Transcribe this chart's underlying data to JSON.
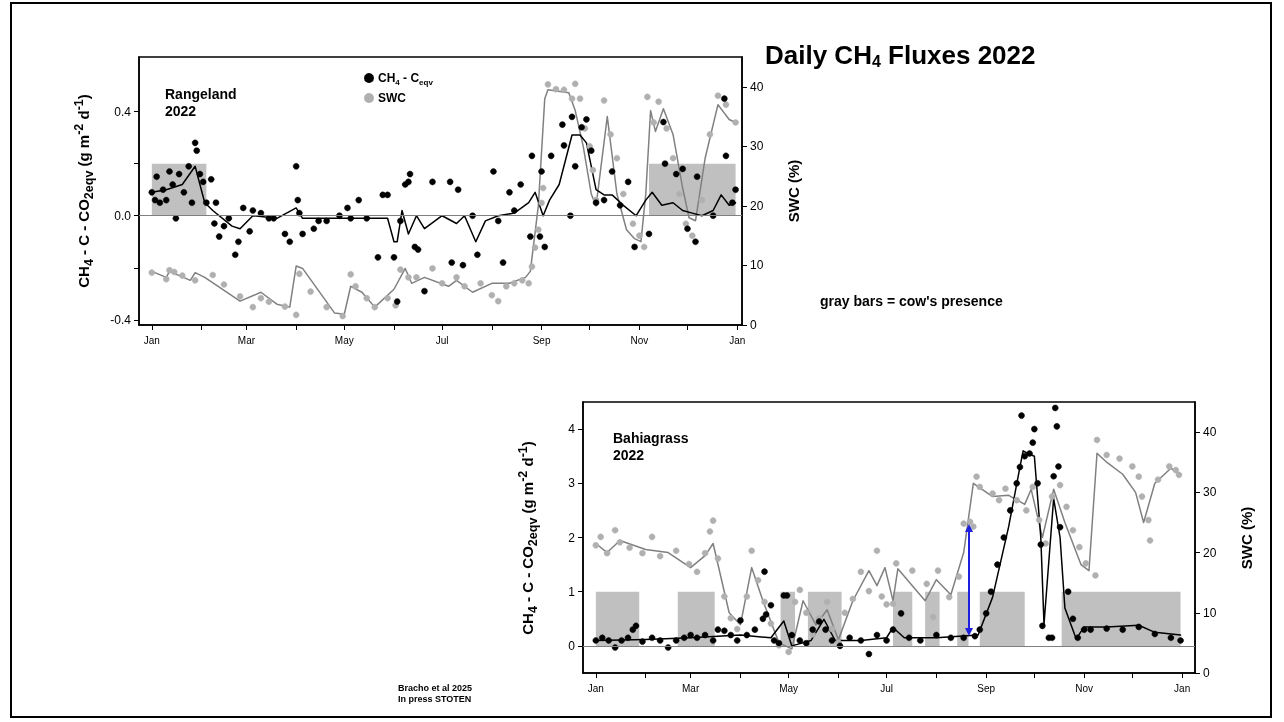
{
  "chart_data": [
    {
      "type": "scatter",
      "title": "Daily CH$_{4}$ Fluxes 2022",
      "ylabel": "CH$_{4}$ - C - CO$_{2eqv}$ (g m$^{-2}$ d$^{-1}$)",
      "y2label": "SWC (%)",
      "annotations": [
        "Rangeland\n2022",
        "gray bars = cow's presence"
      ],
      "xlim": [
        "2021-12-24",
        "2023-01-04"
      ],
      "xticks": [
        {
          "value": "2022-01-01",
          "label": "Jan"
        },
        {
          "value": "2022-02-01",
          "label": null
        },
        {
          "value": "2022-03-01",
          "label": "Mar"
        },
        {
          "value": "2022-04-01",
          "label": null
        },
        {
          "value": "2022-05-01",
          "label": "May"
        },
        {
          "value": "2022-06-01",
          "label": null
        },
        {
          "value": "2022-07-01",
          "label": "Jul"
        },
        {
          "value": "2022-08-01",
          "label": null
        },
        {
          "value": "2022-09-01",
          "label": "Sep"
        },
        {
          "value": "2022-10-01",
          "label": null
        },
        {
          "value": "2022-11-01",
          "label": "Nov"
        },
        {
          "value": "2022-12-01",
          "label": null
        },
        {
          "value": "2023-01-01",
          "label": "Jan"
        }
      ],
      "ylim": [
        -0.42,
        0.61
      ],
      "yticks": [
        -0.4,
        {
          "value": -0.2,
          "label": null
        },
        {
          "value": 0,
          "label": "0.0"
        },
        {
          "value": 0.2,
          "label": null
        },
        0.4
      ],
      "y2lim": [
        0,
        45
      ],
      "y2ticks": [
        0,
        10,
        20,
        30,
        40
      ],
      "legend": "top",
      "marker": "circle",
      "ref_lines": [
        {
          "axis": "y",
          "value": 0,
          "color": "#808080"
        }
      ],
      "series": [
        {
          "type": "area",
          "color": "#c0c0c0",
          "marker": "none",
          "x": [
            "2022-01-01",
            "2022-02-04",
            "2022-02-04",
            "2022-11-07",
            "2022-11-07",
            "2022-12-31"
          ],
          "values": [
            0.2,
            0.2,
            0,
            0,
            0.2,
            0.2
          ]
        },
        {
          "type": "line",
          "color": "#808080",
          "axis": "y2",
          "marker": "none",
          "x": [
            "2022-01-01",
            "2022-01-10",
            "2022-01-12",
            "2022-01-25",
            "2022-01-28",
            "2022-02-03",
            "2022-02-25",
            "2022-03-10",
            "2022-03-20",
            "2022-03-28",
            "2022-04-01",
            "2022-04-05",
            "2022-04-25",
            "2022-05-01",
            "2022-05-05",
            "2022-05-12",
            "2022-05-20",
            "2022-06-01",
            "2022-06-08",
            "2022-06-12",
            "2022-06-20",
            "2022-07-05",
            "2022-07-10",
            "2022-07-20",
            "2022-08-01",
            "2022-08-12",
            "2022-08-22",
            "2022-08-25",
            "2022-08-30",
            "2022-09-03",
            "2022-09-05",
            "2022-09-18",
            "2022-09-22",
            "2022-09-27",
            "2022-10-02",
            "2022-10-05",
            "2022-10-12",
            "2022-10-18",
            "2022-10-24",
            "2022-10-29",
            "2022-11-02",
            "2022-11-05",
            "2022-11-08",
            "2022-11-11",
            "2022-11-16",
            "2022-11-22",
            "2022-11-28",
            "2022-12-02",
            "2022-12-06",
            "2022-12-12",
            "2022-12-20",
            "2022-12-27",
            "2022-12-31"
          ],
          "values": [
            9,
            8,
            9,
            7.5,
            8.8,
            8,
            4,
            5.5,
            3.5,
            3,
            9.9,
            9.5,
            2,
            1.8,
            6.5,
            5.5,
            3,
            6,
            9.5,
            7,
            8,
            6.5,
            7.5,
            5.5,
            7,
            7,
            8,
            9,
            20,
            38,
            39.5,
            39,
            36,
            30,
            22,
            20,
            35,
            22,
            16,
            14.5,
            14,
            22,
            36,
            32.5,
            36.3,
            32,
            23,
            18,
            17.5,
            28,
            37,
            34.5,
            34
          ]
        },
        {
          "name": "SWC",
          "color": "#b0b0b0",
          "axis": "y2",
          "x": [
            "2022-01-01",
            "2022-01-10",
            "2022-01-12",
            "2022-01-15",
            "2022-01-20",
            "2022-01-28",
            "2022-02-08",
            "2022-02-15",
            "2022-02-25",
            "2022-03-05",
            "2022-03-10",
            "2022-03-15",
            "2022-03-25",
            "2022-04-01",
            "2022-04-03",
            "2022-04-10",
            "2022-04-20",
            "2022-04-30",
            "2022-05-05",
            "2022-05-08",
            "2022-05-15",
            "2022-05-20",
            "2022-05-28",
            "2022-06-02",
            "2022-06-05",
            "2022-06-10",
            "2022-06-15",
            "2022-06-25",
            "2022-07-01",
            "2022-07-10",
            "2022-07-15",
            "2022-07-25",
            "2022-08-01",
            "2022-08-05",
            "2022-08-10",
            "2022-08-15",
            "2022-08-20",
            "2022-08-24",
            "2022-08-26",
            "2022-08-28",
            "2022-08-30",
            "2022-09-01",
            "2022-09-02",
            "2022-09-05",
            "2022-09-10",
            "2022-09-15",
            "2022-09-20",
            "2022-09-22",
            "2022-09-25",
            "2022-09-28",
            "2022-10-01",
            "2022-10-03",
            "2022-10-05",
            "2022-10-10",
            "2022-10-14",
            "2022-10-18",
            "2022-10-22",
            "2022-10-28",
            "2022-11-01",
            "2022-11-04",
            "2022-11-06",
            "2022-11-10",
            "2022-11-13",
            "2022-11-18",
            "2022-11-22",
            "2022-11-26",
            "2022-11-30",
            "2022-12-04",
            "2022-12-10",
            "2022-12-15",
            "2022-12-20",
            "2022-12-25",
            "2022-12-31"
          ],
          "values": [
            8.8,
            7.7,
            9.2,
            8.9,
            8.3,
            7.5,
            8.4,
            6.8,
            4.8,
            3,
            4.5,
            3.9,
            3.1,
            1.7,
            8.6,
            5.6,
            3,
            1.5,
            8.5,
            6.5,
            4.5,
            3,
            4.5,
            3.3,
            9.3,
            8,
            8,
            9.5,
            7,
            8,
            6.5,
            7,
            5,
            4,
            6.5,
            7,
            7.5,
            7,
            9.8,
            13,
            16,
            20.5,
            23,
            40.4,
            39.6,
            39.5,
            38,
            40.5,
            38,
            33,
            30,
            26,
            21,
            37.7,
            32,
            28,
            22,
            17,
            15,
            13.1,
            38.3,
            34,
            37.5,
            33,
            28,
            22,
            17,
            15,
            21,
            32,
            38.5,
            37,
            34
          ]
        },
        {
          "type": "line",
          "color": "#000000",
          "marker": "none",
          "x": [
            "2022-01-01",
            "2022-01-10",
            "2022-01-20",
            "2022-01-28",
            "2022-02-03",
            "2022-02-08",
            "2022-02-20",
            "2022-02-25",
            "2022-03-05",
            "2022-03-20",
            "2022-04-01",
            "2022-04-05",
            "2022-04-20",
            "2022-05-15",
            "2022-05-28",
            "2022-06-01",
            "2022-06-03",
            "2022-06-06",
            "2022-06-10",
            "2022-06-15",
            "2022-06-20",
            "2022-07-01",
            "2022-07-10",
            "2022-07-15",
            "2022-07-22",
            "2022-07-28",
            "2022-08-05",
            "2022-08-15",
            "2022-08-24",
            "2022-08-28",
            "2022-09-02",
            "2022-09-06",
            "2022-09-12",
            "2022-09-20",
            "2022-09-25",
            "2022-09-29",
            "2022-10-05",
            "2022-10-10",
            "2022-10-15",
            "2022-10-22",
            "2022-10-30",
            "2022-11-05",
            "2022-11-09",
            "2022-11-15",
            "2022-11-22",
            "2022-11-28",
            "2022-12-04",
            "2022-12-10",
            "2022-12-17",
            "2022-12-22",
            "2022-12-27",
            "2022-12-31"
          ],
          "values": [
            0.09,
            0.1,
            0.12,
            0.19,
            0.05,
            0.02,
            -0.04,
            -0.05,
            0,
            -0.01,
            0.03,
            -0.01,
            -0.01,
            -0.01,
            -0.01,
            -0.1,
            -0.1,
            0.02,
            -0.07,
            0,
            -0.05,
            0,
            -0.03,
            0,
            -0.1,
            -0.02,
            0,
            0.01,
            0.05,
            0.09,
            0,
            0.06,
            0.12,
            0.31,
            0.31,
            0.28,
            0.1,
            0.08,
            0.08,
            0.04,
            0,
            0.06,
            0.09,
            0.04,
            0.05,
            0.02,
            0.01,
            0,
            0.02,
            0.08,
            0.04,
            0.05
          ]
        },
        {
          "name": "CH$_{4}$ - C$_{eqv}$",
          "color": "#000000",
          "x": [
            "2022-01-01",
            "2022-01-03",
            "2022-01-04",
            "2022-01-06",
            "2022-01-08",
            "2022-01-10",
            "2022-01-12",
            "2022-01-14",
            "2022-01-16",
            "2022-01-18",
            "2022-01-21",
            "2022-01-24",
            "2022-01-26",
            "2022-01-28",
            "2022-01-29",
            "2022-01-31",
            "2022-02-02",
            "2022-02-04",
            "2022-02-07",
            "2022-02-09",
            "2022-02-10",
            "2022-02-12",
            "2022-02-15",
            "2022-02-18",
            "2022-02-22",
            "2022-02-24",
            "2022-02-27",
            "2022-03-03",
            "2022-03-05",
            "2022-03-10",
            "2022-03-15",
            "2022-03-18",
            "2022-03-25",
            "2022-03-28",
            "2022-04-01",
            "2022-04-02",
            "2022-04-03",
            "2022-04-05",
            "2022-04-12",
            "2022-04-15",
            "2022-04-20",
            "2022-04-28",
            "2022-05-03",
            "2022-05-05",
            "2022-05-10",
            "2022-05-15",
            "2022-05-22",
            "2022-05-25",
            "2022-05-28",
            "2022-06-01",
            "2022-06-03",
            "2022-06-05",
            "2022-06-08",
            "2022-06-10",
            "2022-06-11",
            "2022-06-14",
            "2022-06-16",
            "2022-06-20",
            "2022-06-25",
            "2022-07-06",
            "2022-07-07",
            "2022-07-11",
            "2022-07-14",
            "2022-07-20",
            "2022-07-23",
            "2022-08-02",
            "2022-08-05",
            "2022-08-08",
            "2022-08-12",
            "2022-08-15",
            "2022-08-19",
            "2022-08-25",
            "2022-08-26",
            "2022-08-31",
            "2022-09-01",
            "2022-09-03",
            "2022-09-07",
            "2022-09-14",
            "2022-09-15",
            "2022-09-19",
            "2022-09-20",
            "2022-09-22",
            "2022-09-26",
            "2022-09-29",
            "2022-10-02",
            "2022-10-05",
            "2022-10-10",
            "2022-10-15",
            "2022-10-20",
            "2022-10-25",
            "2022-10-29",
            "2022-11-07",
            "2022-11-16",
            "2022-11-17",
            "2022-11-24",
            "2022-11-28",
            "2022-12-01",
            "2022-12-06",
            "2022-12-07",
            "2022-12-17",
            "2022-12-24",
            "2022-12-25",
            "2022-12-29",
            "2022-12-31"
          ],
          "values": [
            0.09,
            0.06,
            0.15,
            0.05,
            0.1,
            0.06,
            0.17,
            0.12,
            -0.01,
            0.16,
            0.09,
            0.19,
            0.05,
            0.28,
            0.25,
            0.16,
            0.13,
            0.05,
            0.14,
            -0.03,
            0.05,
            -0.08,
            -0.04,
            -0.01,
            -0.15,
            -0.1,
            0.03,
            -0.06,
            0.02,
            0.01,
            -0.01,
            -0.01,
            -0.07,
            -0.1,
            0.19,
            0.06,
            0.01,
            -0.07,
            -0.05,
            -0.02,
            -0.02,
            0,
            0.03,
            -0.01,
            0.06,
            -0.01,
            -0.16,
            0.08,
            0.08,
            -0.16,
            -0.33,
            -0.02,
            0.12,
            0.13,
            0.16,
            -0.12,
            -0.13,
            -0.29,
            0.13,
            0.13,
            -0.18,
            0.1,
            -0.19,
            0,
            -0.15,
            0.17,
            -0.02,
            -0.18,
            0.09,
            0.02,
            0.12,
            -0.08,
            0.23,
            -0.08,
            0.17,
            -0.12,
            0.23,
            0.35,
            0.27,
            0,
            0.38,
            0.19,
            0.34,
            0.37,
            0.25,
            0.05,
            0.06,
            0.17,
            0.04,
            0.13,
            -0.12,
            -0.07,
            0.36,
            0.2,
            0.16,
            0.18,
            -0.05,
            -0.1,
            0.15,
            0,
            0.45,
            0.23,
            0.05,
            0.1
          ]
        }
      ]
    },
    {
      "type": "scatter",
      "ylabel": "CH$_{4}$ - C - CO$_{2eqv}$ (g m$^{-2}$ d$^{-1}$)",
      "y2label": "SWC (%)",
      "annotations": [
        "Bahiagrass\n2022",
        "Bracho et al 2025\nIn press STOTEN"
      ],
      "xlim": [
        "2021-12-24",
        "2023-01-09"
      ],
      "xticks": [
        {
          "value": "2022-01-01",
          "label": "Jan"
        },
        {
          "value": "2022-02-01",
          "label": null
        },
        {
          "value": "2022-03-01",
          "label": "Mar"
        },
        {
          "value": "2022-04-01",
          "label": null
        },
        {
          "value": "2022-05-01",
          "label": "May"
        },
        {
          "value": "2022-06-01",
          "label": null
        },
        {
          "value": "2022-07-01",
          "label": "Jul"
        },
        {
          "value": "2022-08-01",
          "label": null
        },
        {
          "value": "2022-09-01",
          "label": "Sep"
        },
        {
          "value": "2022-10-01",
          "label": null
        },
        {
          "value": "2022-11-01",
          "label": "Nov"
        },
        {
          "value": "2022-12-01",
          "label": null
        },
        {
          "value": "2023-01-01",
          "label": "Jan"
        }
      ],
      "ylim": [
        -0.5,
        4.5
      ],
      "yticks": [
        0,
        1,
        2,
        3,
        4
      ],
      "y2lim": [
        0,
        45
      ],
      "y2ticks": [
        0,
        10,
        20,
        30,
        40
      ],
      "marker": "circle",
      "ref_lines": [
        {
          "axis": "y",
          "value": 0,
          "color": "#808080"
        }
      ],
      "series": [
        {
          "type": "area",
          "color": "#c0c0c0",
          "marker": "none",
          "x": [
            "2022-01-01",
            "2022-01-28",
            "2022-01-28",
            "2022-02-21",
            "2022-02-21",
            "2022-03-16",
            "2022-03-16",
            "2022-04-26",
            "2022-04-26",
            "2022-05-05",
            "2022-05-05",
            "2022-05-13",
            "2022-05-13",
            "2022-06-03",
            "2022-06-03",
            "2022-07-05",
            "2022-07-05",
            "2022-07-17",
            "2022-07-17",
            "2022-07-25",
            "2022-07-25",
            "2022-08-03",
            "2022-08-03",
            "2022-08-14",
            "2022-08-14",
            "2022-08-21",
            "2022-08-21",
            "2022-08-28",
            "2022-08-28",
            "2022-09-25",
            "2022-09-25",
            "2022-10-18",
            "2022-10-18",
            "2022-12-31"
          ],
          "values": [
            1,
            1,
            0,
            0,
            1,
            1,
            0,
            0,
            1,
            1,
            0,
            0,
            1,
            1,
            0,
            0,
            1,
            1,
            0,
            0,
            1,
            1,
            0,
            0,
            1,
            1,
            0,
            0,
            1,
            1,
            0,
            0,
            1,
            1
          ]
        },
        {
          "type": "line",
          "color": "#808080",
          "axis": "y2",
          "marker": "none",
          "x": [
            "2022-01-01",
            "2022-01-08",
            "2022-01-16",
            "2022-02-01",
            "2022-02-15",
            "2022-03-01",
            "2022-03-10",
            "2022-03-15",
            "2022-03-25",
            "2022-04-01",
            "2022-04-08",
            "2022-04-15",
            "2022-04-25",
            "2022-05-03",
            "2022-05-10",
            "2022-05-18",
            "2022-05-25",
            "2022-06-01",
            "2022-06-10",
            "2022-06-20",
            "2022-06-25",
            "2022-06-30",
            "2022-07-05",
            "2022-07-08",
            "2022-07-25",
            "2022-08-01",
            "2022-08-10",
            "2022-08-18",
            "2022-08-24",
            "2022-09-05",
            "2022-09-15",
            "2022-09-25",
            "2022-09-29",
            "2022-10-06",
            "2022-10-13",
            "2022-10-20",
            "2022-10-30",
            "2022-11-04",
            "2022-11-09",
            "2022-11-15",
            "2022-11-25",
            "2022-12-03",
            "2022-12-08",
            "2022-12-15",
            "2022-12-25",
            "2022-12-31"
          ],
          "values": [
            21.5,
            20,
            22,
            20.5,
            20,
            17.5,
            19.5,
            21.5,
            10,
            8,
            17.5,
            12,
            5,
            4,
            12,
            8,
            10.5,
            5.5,
            12,
            17,
            14.5,
            17.5,
            12,
            17.3,
            12,
            15.5,
            13,
            20,
            31.5,
            29.3,
            29.5,
            28,
            30.5,
            22.5,
            30.5,
            25,
            18,
            17,
            36.5,
            35,
            33,
            30,
            25,
            31.5,
            34,
            33
          ]
        },
        {
          "color": "#b0b0b0",
          "axis": "y2",
          "x": [
            "2022-01-01",
            "2022-01-04",
            "2022-01-08",
            "2022-01-13",
            "2022-01-16",
            "2022-01-22",
            "2022-01-30",
            "2022-02-05",
            "2022-02-10",
            "2022-02-20",
            "2022-02-28",
            "2022-03-05",
            "2022-03-10",
            "2022-03-13",
            "2022-03-15",
            "2022-03-18",
            "2022-03-22",
            "2022-03-26",
            "2022-03-30",
            "2022-04-05",
            "2022-04-08",
            "2022-04-12",
            "2022-04-16",
            "2022-04-20",
            "2022-04-25",
            "2022-05-01",
            "2022-05-05",
            "2022-05-08",
            "2022-05-12",
            "2022-05-16",
            "2022-05-20",
            "2022-05-25",
            "2022-05-28",
            "2022-06-01",
            "2022-06-05",
            "2022-06-10",
            "2022-06-15",
            "2022-06-20",
            "2022-06-25",
            "2022-06-28",
            "2022-07-01",
            "2022-07-05",
            "2022-07-07",
            "2022-07-17",
            "2022-07-26",
            "2022-07-30",
            "2022-08-02",
            "2022-08-09",
            "2022-08-15",
            "2022-08-18",
            "2022-08-22",
            "2022-08-24",
            "2022-08-26",
            "2022-08-28",
            "2022-09-05",
            "2022-09-09",
            "2022-09-13",
            "2022-09-20",
            "2022-09-26",
            "2022-09-30",
            "2022-10-04",
            "2022-10-08",
            "2022-10-12",
            "2022-10-17",
            "2022-10-21",
            "2022-10-25",
            "2022-10-29",
            "2022-11-02",
            "2022-11-08",
            "2022-11-09",
            "2022-11-15",
            "2022-11-23",
            "2022-12-01",
            "2022-12-05",
            "2022-12-07",
            "2022-12-11",
            "2022-12-12",
            "2022-12-17",
            "2022-12-24",
            "2022-12-28",
            "2022-12-30"
          ],
          "values": [
            21.2,
            22.6,
            19.9,
            23.7,
            21.7,
            20.8,
            19.9,
            22.6,
            19.4,
            20.3,
            18.1,
            16.8,
            19.9,
            23.5,
            25.3,
            19,
            12.7,
            9.1,
            7.3,
            12.7,
            20.3,
            15.4,
            11.8,
            8.2,
            4.6,
            3.5,
            11.8,
            13.8,
            10,
            6.4,
            9.1,
            11.8,
            7.3,
            5.1,
            10,
            12.3,
            16.8,
            13.6,
            20.3,
            12.7,
            11.4,
            11.5,
            18.2,
            17,
            14.8,
            9.3,
            17,
            12.6,
            16,
            24.8,
            25.1,
            24.3,
            32.6,
            30.9,
            29.8,
            28.7,
            30.6,
            28.7,
            27,
            30.9,
            25.4,
            21.5,
            29.3,
            31.2,
            27.6,
            23.7,
            20.9,
            18.2,
            16.2,
            38.7,
            36.2,
            35.6,
            34.3,
            32.6,
            29.3,
            25.4,
            22,
            32.1,
            34.3,
            33.7,
            32.9
          ]
        },
        {
          "type": "line",
          "color": "#000000",
          "marker": "none",
          "x": [
            "2022-01-01",
            "2022-02-01",
            "2022-03-01",
            "2022-04-01",
            "2022-04-20",
            "2022-04-28",
            "2022-05-03",
            "2022-05-15",
            "2022-05-23",
            "2022-05-30",
            "2022-06-15",
            "2022-07-01",
            "2022-07-05",
            "2022-07-12",
            "2022-08-01",
            "2022-08-27",
            "2022-09-05",
            "2022-09-15",
            "2022-09-22",
            "2022-09-24",
            "2022-09-27",
            "2022-10-01",
            "2022-10-05",
            "2022-10-07",
            "2022-10-13",
            "2022-10-17",
            "2022-10-20",
            "2022-10-27",
            "2022-11-01",
            "2022-11-15",
            "2022-12-05",
            "2022-12-15",
            "2022-12-31"
          ],
          "values": [
            0.1,
            0.12,
            0.15,
            0.2,
            0.15,
            0.46,
            0,
            0.1,
            0.49,
            0.1,
            0.1,
            0.15,
            0.34,
            0.15,
            0.15,
            0.2,
            0.9,
            2.2,
            3.3,
            3.6,
            3.55,
            3.5,
            2,
            0.4,
            2.72,
            2,
            0.7,
            0.13,
            0.35,
            0.35,
            0.38,
            0.25,
            0.2
          ]
        },
        {
          "color": "#000000",
          "x": [
            "2022-01-01",
            "2022-01-05",
            "2022-01-09",
            "2022-01-13",
            "2022-01-17",
            "2022-01-21",
            "2022-01-24",
            "2022-01-26",
            "2022-01-30",
            "2022-02-05",
            "2022-02-10",
            "2022-02-15",
            "2022-02-20",
            "2022-02-25",
            "2022-03-01",
            "2022-03-05",
            "2022-03-10",
            "2022-03-15",
            "2022-03-18",
            "2022-03-22",
            "2022-03-26",
            "2022-03-30",
            "2022-04-01",
            "2022-04-05",
            "2022-04-10",
            "2022-04-15",
            "2022-04-16",
            "2022-04-17",
            "2022-04-20",
            "2022-04-22",
            "2022-04-25",
            "2022-04-28",
            "2022-04-30",
            "2022-05-03",
            "2022-05-08",
            "2022-05-12",
            "2022-05-16",
            "2022-05-20",
            "2022-05-24",
            "2022-05-28",
            "2022-06-02",
            "2022-06-08",
            "2022-06-15",
            "2022-06-20",
            "2022-06-25",
            "2022-07-01",
            "2022-07-05",
            "2022-07-10",
            "2022-07-15",
            "2022-07-22",
            "2022-08-01",
            "2022-08-10",
            "2022-08-18",
            "2022-08-25",
            "2022-08-28",
            "2022-09-01",
            "2022-09-04",
            "2022-09-08",
            "2022-09-12",
            "2022-09-16",
            "2022-09-20",
            "2022-09-22",
            "2022-09-23",
            "2022-09-25",
            "2022-09-28",
            "2022-09-30",
            "2022-10-01",
            "2022-10-03",
            "2022-10-05",
            "2022-10-06",
            "2022-10-10",
            "2022-10-12",
            "2022-10-13",
            "2022-10-14",
            "2022-10-15",
            "2022-10-16",
            "2022-10-17",
            "2022-10-22",
            "2022-10-25",
            "2022-10-28",
            "2022-11-01",
            "2022-11-05",
            "2022-11-15",
            "2022-11-25",
            "2022-12-05",
            "2022-12-15",
            "2022-12-25",
            "2022-12-31"
          ],
          "values": [
            0.1,
            0.15,
            0.1,
            -0.03,
            0.1,
            0.15,
            0.3,
            0.37,
            0.08,
            0.15,
            0.1,
            -0.03,
            0.1,
            0.15,
            0.2,
            0.15,
            0.2,
            0.1,
            0.3,
            0.28,
            0.2,
            0.1,
            0.47,
            0.2,
            0.3,
            0.5,
            1.37,
            0.58,
            0.75,
            0.1,
            0.05,
            0.93,
            0.93,
            0.2,
            0.1,
            0.05,
            0.3,
            0.45,
            0.3,
            0.1,
            0,
            0.15,
            0.1,
            -0.15,
            0.2,
            0.1,
            0.3,
            0.6,
            0.15,
            0.1,
            0.2,
            0.15,
            0.15,
            0.18,
            0.3,
            0.6,
            1,
            1.5,
            2,
            2.5,
            3,
            3.3,
            4.25,
            3.5,
            3.55,
            3.75,
            4,
            3,
            1.87,
            0.37,
            0.15,
            0.15,
            3.13,
            4.39,
            4.05,
            3.31,
            2.19,
            1,
            0.5,
            0.15,
            0.3,
            0.3,
            0.32,
            0.3,
            0.35,
            0.22,
            0.15,
            0.1
          ]
        }
      ]
    }
  ]
}
